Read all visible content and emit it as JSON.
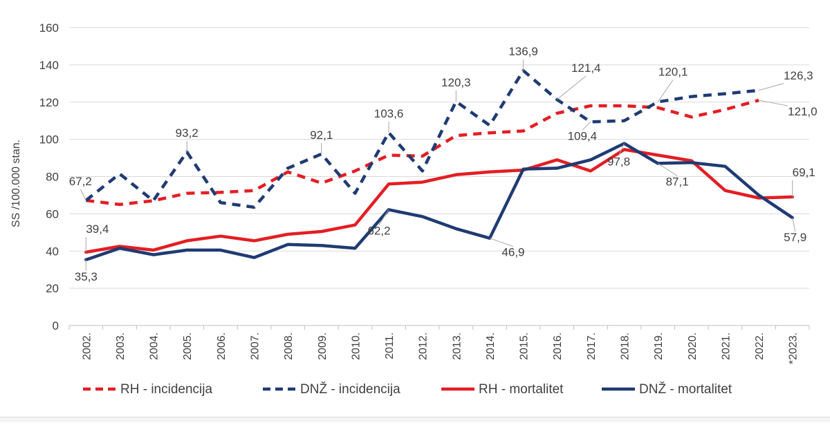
{
  "chart_data": {
    "type": "line",
    "ylabel": "SS /100.000 stan.",
    "xlabel": "",
    "ylim": [
      0,
      160
    ],
    "yticks": [
      0,
      20,
      40,
      60,
      80,
      100,
      120,
      140,
      160
    ],
    "grid": true,
    "legend_position": "bottom",
    "categories": [
      "2002.",
      "2003.",
      "2004.",
      "2005.",
      "2006.",
      "2007.",
      "2008.",
      "2009.",
      "2010.",
      "2011.",
      "2012.",
      "2013.",
      "2014.",
      "2015.",
      "2016.",
      "2017.",
      "2018.",
      "2019.",
      "2020.",
      "2021.",
      "2022.",
      "*2023."
    ],
    "series": [
      {
        "name": "RH - incidencija",
        "color": "#e31e24",
        "style": "dashed",
        "values": [
          67.2,
          65,
          67,
          71,
          71.5,
          72.5,
          82.5,
          76.5,
          83,
          91.5,
          91,
          102,
          103.5,
          104.5,
          114,
          118,
          118,
          117,
          112,
          116,
          121,
          null
        ]
      },
      {
        "name": "DNŽ - incidencija",
        "color": "#1f3b73",
        "style": "dashed",
        "values": [
          67.2,
          81.5,
          67,
          93.2,
          66,
          63.5,
          84.5,
          92.1,
          71,
          103.6,
          83,
          120.3,
          107.5,
          136.9,
          121.4,
          109.4,
          110,
          120.1,
          123,
          124.5,
          126.3,
          null
        ]
      },
      {
        "name": "RH - mortalitet",
        "color": "#e31e24",
        "style": "solid",
        "values": [
          39.4,
          42.5,
          40.5,
          45.5,
          48,
          45.5,
          49,
          50.5,
          54,
          76,
          77,
          81,
          82.5,
          83.5,
          89,
          83,
          94.5,
          91.5,
          88.5,
          72.5,
          68.5,
          69.1
        ]
      },
      {
        "name": "DNŽ - mortalitet",
        "color": "#1f3b73",
        "style": "solid",
        "values": [
          35.3,
          41.5,
          38,
          40.5,
          40.5,
          36.5,
          43.5,
          43,
          41.5,
          62.2,
          58.5,
          52,
          46.9,
          84,
          84.5,
          89,
          97.8,
          87.1,
          87.5,
          85.5,
          70,
          57.9
        ]
      }
    ],
    "annotations": [
      {
        "text": "67,2",
        "series": 1,
        "index": 0
      },
      {
        "text": "93,2",
        "series": 1,
        "index": 3
      },
      {
        "text": "92,1",
        "series": 1,
        "index": 7
      },
      {
        "text": "103,6",
        "series": 1,
        "index": 9
      },
      {
        "text": "120,3",
        "series": 1,
        "index": 11
      },
      {
        "text": "136,9",
        "series": 1,
        "index": 13
      },
      {
        "text": "121,4",
        "series": 1,
        "index": 14
      },
      {
        "text": "109,4",
        "series": 1,
        "index": 15
      },
      {
        "text": "120,1",
        "series": 1,
        "index": 17
      },
      {
        "text": "126,3",
        "series": 1,
        "index": 20
      },
      {
        "text": "121,0",
        "series": 0,
        "index": 20
      },
      {
        "text": "39,4",
        "series": 2,
        "index": 0
      },
      {
        "text": "35,3",
        "series": 3,
        "index": 0
      },
      {
        "text": "62,2",
        "series": 3,
        "index": 9
      },
      {
        "text": "46,9",
        "series": 3,
        "index": 12
      },
      {
        "text": "97,8",
        "series": 3,
        "index": 16
      },
      {
        "text": "87,1",
        "series": 3,
        "index": 17
      },
      {
        "text": "69,1",
        "series": 2,
        "index": 21
      },
      {
        "text": "57,9",
        "series": 3,
        "index": 21
      }
    ]
  }
}
